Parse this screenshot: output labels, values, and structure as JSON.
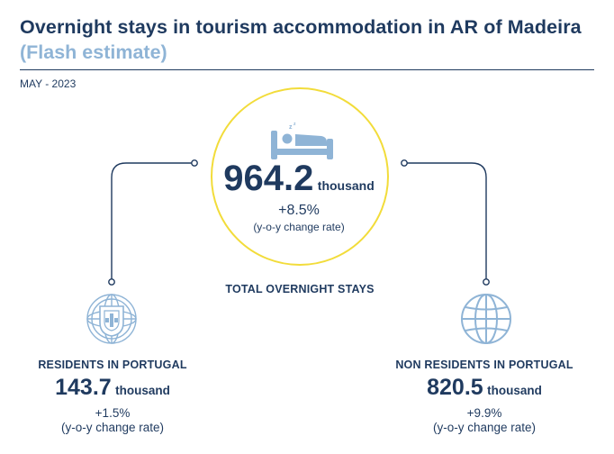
{
  "header": {
    "title": "Overnight stays in tourism accommodation in AR of Madeira",
    "subtitle": "(Flash estimate)",
    "period": "MAY - 2023"
  },
  "total": {
    "value": "964.2",
    "unit": "thousand",
    "change": "+8.5%",
    "change_label": "(y-o-y change rate)",
    "caption": "TOTAL OVERNIGHT STAYS",
    "icon": "bed-icon"
  },
  "residents": {
    "caption": "RESIDENTS IN PORTUGAL",
    "value": "143.7",
    "unit": "thousand",
    "change": "+1.5%",
    "change_label": "(y-o-y change rate)",
    "icon": "portugal-shield-icon"
  },
  "non_residents": {
    "caption": "NON RESIDENTS IN PORTUGAL",
    "value": "820.5",
    "unit": "thousand",
    "change": "+9.9%",
    "change_label": "(y-o-y change rate)",
    "icon": "globe-icon"
  },
  "colors": {
    "navy": "#1f3a5f",
    "light_blue": "#8fb4d6",
    "yellow": "#f2dc3a"
  }
}
